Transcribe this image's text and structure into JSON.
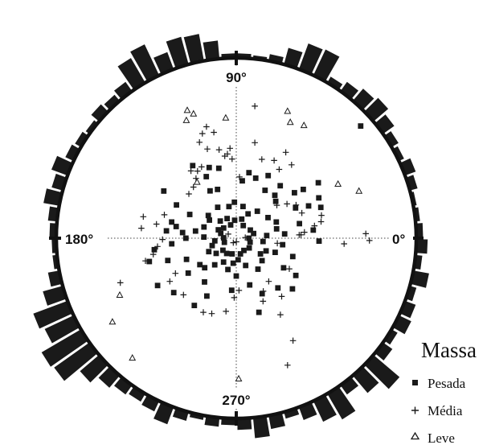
{
  "chart_data": {
    "type": "scatter",
    "subtype": "polar-scatter-with-rose-histogram",
    "title": "",
    "angle_labels": [
      {
        "angle": 90,
        "label": "90°"
      },
      {
        "angle": 180,
        "label": "180°"
      },
      {
        "angle": 0,
        "label": "0°"
      },
      {
        "angle": 270,
        "label": "270°"
      }
    ],
    "legend": {
      "title": "Massa",
      "placement": "bottom-right",
      "entries": [
        {
          "label": "Pesada",
          "marker": "square"
        },
        {
          "label": "Média",
          "marker": "plus"
        },
        {
          "label": "Leve",
          "marker": "triangle"
        }
      ]
    },
    "radial_range": [
      0,
      1
    ],
    "grid": "dotted-crosshair",
    "color": "#1a1a1a",
    "rose_histogram": {
      "bin_width_deg": 5,
      "bins": [
        {
          "angle": 2.5,
          "value": 6
        },
        {
          "angle": 7.5,
          "value": 4
        },
        {
          "angle": 12.5,
          "value": 3
        },
        {
          "angle": 17.5,
          "value": 7
        },
        {
          "angle": 22.5,
          "value": 10
        },
        {
          "angle": 27.5,
          "value": 5
        },
        {
          "angle": 32.5,
          "value": 7
        },
        {
          "angle": 37.5,
          "value": 12
        },
        {
          "angle": 42.5,
          "value": 17
        },
        {
          "angle": 47.5,
          "value": 14
        },
        {
          "angle": 52.5,
          "value": 10
        },
        {
          "angle": 57.5,
          "value": 6
        },
        {
          "angle": 62.5,
          "value": 25
        },
        {
          "angle": 67.5,
          "value": 24
        },
        {
          "angle": 72.5,
          "value": 15
        },
        {
          "angle": 77.5,
          "value": 6
        },
        {
          "angle": 82.5,
          "value": 3
        },
        {
          "angle": 87.5,
          "value": 4
        },
        {
          "angle": 92.5,
          "value": 4
        },
        {
          "angle": 97.5,
          "value": 16
        },
        {
          "angle": 102.5,
          "value": 24
        },
        {
          "angle": 107.5,
          "value": 25
        },
        {
          "angle": 112.5,
          "value": 16
        },
        {
          "angle": 117.5,
          "value": 30
        },
        {
          "angle": 122.5,
          "value": 25
        },
        {
          "angle": 127.5,
          "value": 10
        },
        {
          "angle": 132.5,
          "value": 7
        },
        {
          "angle": 137.5,
          "value": 9
        },
        {
          "angle": 142.5,
          "value": 4
        },
        {
          "angle": 147.5,
          "value": 6
        },
        {
          "angle": 152.5,
          "value": 8
        },
        {
          "angle": 157.5,
          "value": 15
        },
        {
          "angle": 162.5,
          "value": 10
        },
        {
          "angle": 167.5,
          "value": 14
        },
        {
          "angle": 172.5,
          "value": 8
        },
        {
          "angle": 177.5,
          "value": 6
        },
        {
          "angle": 182.5,
          "value": 4
        },
        {
          "angle": 187.5,
          "value": 4
        },
        {
          "angle": 192.5,
          "value": 10
        },
        {
          "angle": 197.5,
          "value": 18
        },
        {
          "angle": 202.5,
          "value": 32
        },
        {
          "angle": 207.5,
          "value": 28
        },
        {
          "angle": 212.5,
          "value": 40
        },
        {
          "angle": 217.5,
          "value": 38
        },
        {
          "angle": 222.5,
          "value": 22
        },
        {
          "angle": 227.5,
          "value": 14
        },
        {
          "angle": 232.5,
          "value": 10
        },
        {
          "angle": 237.5,
          "value": 8
        },
        {
          "angle": 242.5,
          "value": 10
        },
        {
          "angle": 247.5,
          "value": 16
        },
        {
          "angle": 252.5,
          "value": 8
        },
        {
          "angle": 257.5,
          "value": 4
        },
        {
          "angle": 262.5,
          "value": 8
        },
        {
          "angle": 267.5,
          "value": 6
        },
        {
          "angle": 272.5,
          "value": 10
        },
        {
          "angle": 277.5,
          "value": 18
        },
        {
          "angle": 282.5,
          "value": 12
        },
        {
          "angle": 287.5,
          "value": 6
        },
        {
          "angle": 292.5,
          "value": 12
        },
        {
          "angle": 297.5,
          "value": 20
        },
        {
          "angle": 302.5,
          "value": 26
        },
        {
          "angle": 307.5,
          "value": 10
        },
        {
          "angle": 312.5,
          "value": 20
        },
        {
          "angle": 317.5,
          "value": 30
        },
        {
          "angle": 322.5,
          "value": 10
        },
        {
          "angle": 327.5,
          "value": 6
        },
        {
          "angle": 332.5,
          "value": 12
        },
        {
          "angle": 337.5,
          "value": 10
        },
        {
          "angle": 342.5,
          "value": 6
        },
        {
          "angle": 347.5,
          "value": 14
        },
        {
          "angle": 352.5,
          "value": 6
        },
        {
          "angle": 357.5,
          "value": 10
        }
      ]
    },
    "series": [
      {
        "name": "Pesada",
        "marker": "square",
        "points": [
          [
            42,
            0.93
          ],
          [
            121,
            0.47
          ],
          [
            116,
            0.38
          ],
          [
            119,
            0.3
          ],
          [
            111,
            0.42
          ],
          [
            111,
            0.29
          ],
          [
            104,
            0.4
          ],
          [
            84,
            0.32
          ],
          [
            79,
            0.37
          ],
          [
            72,
            0.35
          ],
          [
            63,
            0.39
          ],
          [
            59,
            0.31
          ],
          [
            50,
            0.38
          ],
          [
            48,
            0.32
          ],
          [
            43,
            0.3
          ],
          [
            38,
            0.41
          ],
          [
            36,
            0.46
          ],
          [
            24,
            0.44
          ],
          [
            27,
            0.37
          ],
          [
            13,
            0.36
          ],
          [
            26,
            0.51
          ],
          [
            34,
            0.55
          ],
          [
            147,
            0.48
          ],
          [
            151,
            0.38
          ],
          [
            169,
            0.34
          ],
          [
            174,
            0.39
          ],
          [
            141,
            0.2
          ],
          [
            121,
            0.2
          ],
          [
            103,
            0.18
          ],
          [
            93,
            0.2
          ],
          [
            78,
            0.18
          ],
          [
            64,
            0.15
          ],
          [
            52,
            0.19
          ],
          [
            33,
            0.21
          ],
          [
            22,
            0.24
          ],
          [
            13,
            0.23
          ],
          [
            5,
            0.17
          ],
          [
            353,
            0.15
          ],
          [
            337,
            0.18
          ],
          [
            327,
            0.16
          ],
          [
            319,
            0.19
          ],
          [
            305,
            0.21
          ],
          [
            289,
            0.16
          ],
          [
            275,
            0.12
          ],
          [
            263,
            0.14
          ],
          [
            255,
            0.18
          ],
          [
            242,
            0.15
          ],
          [
            231,
            0.19
          ],
          [
            217,
            0.14
          ],
          [
            206,
            0.17
          ],
          [
            197,
            0.14
          ],
          [
            187,
            0.12
          ],
          [
            178,
            0.18
          ],
          [
            170,
            0.23
          ],
          [
            161,
            0.19
          ],
          [
            155,
            0.11
          ],
          [
            133,
            0.13
          ],
          [
            115,
            0.12
          ],
          [
            95,
            0.1
          ],
          [
            74,
            0.11
          ],
          [
            61,
            0.08
          ],
          [
            30,
            0.09
          ],
          [
            15,
            0.1
          ],
          [
            0,
            0.07
          ],
          [
            344,
            0.08
          ],
          [
            323,
            0.09
          ],
          [
            302,
            0.08
          ],
          [
            285,
            0.09
          ],
          [
            255,
            0.09
          ],
          [
            238,
            0.1
          ],
          [
            222,
            0.1
          ],
          [
            199,
            0.07
          ],
          [
            178,
            0.07
          ],
          [
            163,
            0.09
          ],
          [
            141,
            0.09
          ],
          [
            113,
            0.08
          ],
          [
            5,
            0.27
          ],
          [
            352,
            0.26
          ],
          [
            340,
            0.23
          ],
          [
            342,
            0.33
          ],
          [
            328,
            0.31
          ],
          [
            328,
            0.39
          ],
          [
            310,
            0.36
          ],
          [
            295,
            0.34
          ],
          [
            287,
            0.43
          ],
          [
            286,
            0.27
          ],
          [
            265,
            0.29
          ],
          [
            243,
            0.36
          ],
          [
            238,
            0.44
          ],
          [
            234,
            0.3
          ],
          [
            216,
            0.33
          ],
          [
            221,
            0.46
          ],
          [
            211,
            0.51
          ],
          [
            203,
            0.3
          ],
          [
            198,
            0.4
          ],
          [
            195,
            0.5
          ],
          [
            188,
            0.46
          ],
          [
            185,
            0.36
          ],
          [
            180,
            0.28
          ],
          [
            174,
            0.3
          ],
          [
            166,
            0.37
          ],
          [
            153,
            0.29
          ],
          [
            146,
            0.18
          ],
          [
            6,
            0.43
          ],
          [
            358,
            0.46
          ],
          [
            20,
            0.5
          ],
          [
            318,
            0.42
          ],
          [
            270,
            0.21
          ],
          [
            223,
            0.24
          ],
          [
            216,
            0.25
          ]
        ]
      },
      {
        "name": "Média",
        "marker": "plus",
        "points": [
          [
            105,
            0.64
          ],
          [
            108,
            0.61
          ],
          [
            102,
            0.6
          ],
          [
            111,
            0.57
          ],
          [
            108,
            0.52
          ],
          [
            101,
            0.5
          ],
          [
            96,
            0.47
          ],
          [
            94,
            0.5
          ],
          [
            116,
            0.44
          ],
          [
            120,
            0.43
          ],
          [
            124,
            0.4
          ],
          [
            130,
            0.37
          ],
          [
            137,
            0.36
          ],
          [
            124,
            0.45
          ],
          [
            87,
            0.34
          ],
          [
            72,
            0.46
          ],
          [
            64,
            0.48
          ],
          [
            58,
            0.45
          ],
          [
            53,
            0.51
          ],
          [
            60,
            0.55
          ],
          [
            79,
            0.54
          ],
          [
            82,
            0.74
          ],
          [
            98,
            0.46
          ],
          [
            93,
            0.44
          ],
          [
            39,
            0.29
          ],
          [
            34,
            0.34
          ],
          [
            29,
            0.38
          ],
          [
            21,
            0.39
          ],
          [
            15,
            0.49
          ],
          [
            11,
            0.48
          ],
          [
            9,
            0.44
          ],
          [
            5,
            0.38
          ],
          [
            3,
            0.36
          ],
          [
            3,
            0.35
          ],
          [
            357,
            0.6
          ],
          [
            359,
            0.74
          ],
          [
            2,
            0.72
          ],
          [
            174,
            0.53
          ],
          [
            170,
            0.45
          ],
          [
            167,
            0.53
          ],
          [
            162,
            0.42
          ],
          [
            181,
            0.41
          ],
          [
            186,
            0.44
          ],
          [
            191,
            0.47
          ],
          [
            194,
            0.52
          ],
          [
            210,
            0.39
          ],
          [
            213,
            0.44
          ],
          [
            201,
            0.69
          ],
          [
            227,
            0.43
          ],
          [
            246,
            0.45
          ],
          [
            252,
            0.44
          ],
          [
            262,
            0.41
          ],
          [
            268,
            0.33
          ],
          [
            273,
            0.29
          ],
          [
            293,
            0.38
          ],
          [
            300,
            0.49
          ],
          [
            297,
            0.33
          ],
          [
            307,
            0.3
          ],
          [
            308,
            0.41
          ],
          [
            330,
            0.34
          ],
          [
            299,
            0.65
          ],
          [
            292,
            0.76
          ],
          [
            353,
            0.23
          ],
          [
            4,
            0.05
          ],
          [
            271,
            0.02
          ],
          [
            237,
            0.03
          ],
          [
            153,
            0.05
          ]
        ]
      },
      {
        "name": "Leve",
        "marker": "triangle",
        "points": [
          [
            113,
            0.71
          ],
          [
            111,
            0.76
          ],
          [
            109,
            0.73
          ],
          [
            95,
            0.67
          ],
          [
            68,
            0.76
          ],
          [
            65,
            0.71
          ],
          [
            59,
            0.73
          ],
          [
            28,
            0.64
          ],
          [
            21,
            0.73
          ],
          [
            125,
            0.38
          ],
          [
            206,
            0.72
          ],
          [
            214,
            0.83
          ],
          [
            229,
            0.88
          ],
          [
            271,
            0.78
          ]
        ]
      }
    ]
  }
}
